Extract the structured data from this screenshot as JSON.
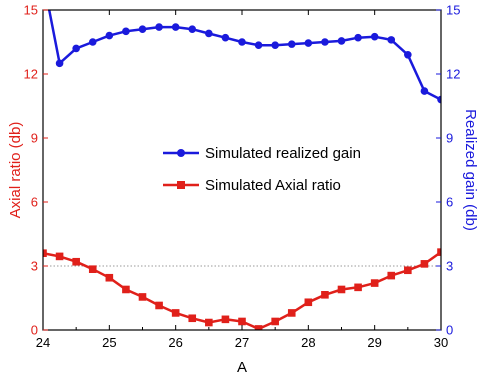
{
  "chart_data": {
    "type": "line",
    "xlabel": "A",
    "xlim": [
      24,
      30
    ],
    "xticks": [
      "24",
      "25",
      "26",
      "27",
      "28",
      "29",
      "30"
    ],
    "y_left": {
      "label": "Axial ratio (db)",
      "lim": [
        0,
        15
      ],
      "ticks": [
        "0",
        "3",
        "6",
        "9",
        "12",
        "15"
      ],
      "color": "#e0201a"
    },
    "y_right": {
      "label": "Realized gain (db)",
      "lim": [
        0,
        15
      ],
      "ticks": [
        "0",
        "3",
        "6",
        "9",
        "12",
        "15"
      ],
      "color": "#1a1adc"
    },
    "reference_line": {
      "y": 3,
      "style": "dotted",
      "color": "#999999"
    },
    "legend_position": "center",
    "series": [
      {
        "name": "Simulated realized gain",
        "axis": "right",
        "color": "#1a1adc",
        "marker": "circle",
        "x": [
          24.0,
          24.25,
          24.5,
          24.75,
          25.0,
          25.25,
          25.5,
          25.75,
          26.0,
          26.25,
          26.5,
          26.75,
          27.0,
          27.25,
          27.5,
          27.75,
          28.0,
          28.25,
          28.5,
          28.75,
          29.0,
          29.25,
          29.5,
          29.75,
          30.0
        ],
        "y": [
          16.5,
          12.5,
          13.2,
          13.5,
          13.8,
          14.0,
          14.1,
          14.2,
          14.2,
          14.1,
          13.9,
          13.7,
          13.5,
          13.35,
          13.35,
          13.4,
          13.45,
          13.5,
          13.55,
          13.7,
          13.75,
          13.6,
          12.9,
          11.2,
          10.8
        ]
      },
      {
        "name": "Simulated Axial ratio",
        "axis": "left",
        "color": "#e0201a",
        "marker": "square",
        "x": [
          24.0,
          24.25,
          24.5,
          24.75,
          25.0,
          25.25,
          25.5,
          25.75,
          26.0,
          26.25,
          26.5,
          26.75,
          27.0,
          27.25,
          27.5,
          27.75,
          28.0,
          28.25,
          28.5,
          28.75,
          29.0,
          29.25,
          29.5,
          29.75,
          30.0
        ],
        "y": [
          3.6,
          3.45,
          3.2,
          2.85,
          2.45,
          1.9,
          1.55,
          1.15,
          0.8,
          0.55,
          0.35,
          0.5,
          0.4,
          0.05,
          0.4,
          0.8,
          1.3,
          1.65,
          1.9,
          2.0,
          2.2,
          2.55,
          2.8,
          3.1,
          3.65
        ]
      }
    ]
  }
}
